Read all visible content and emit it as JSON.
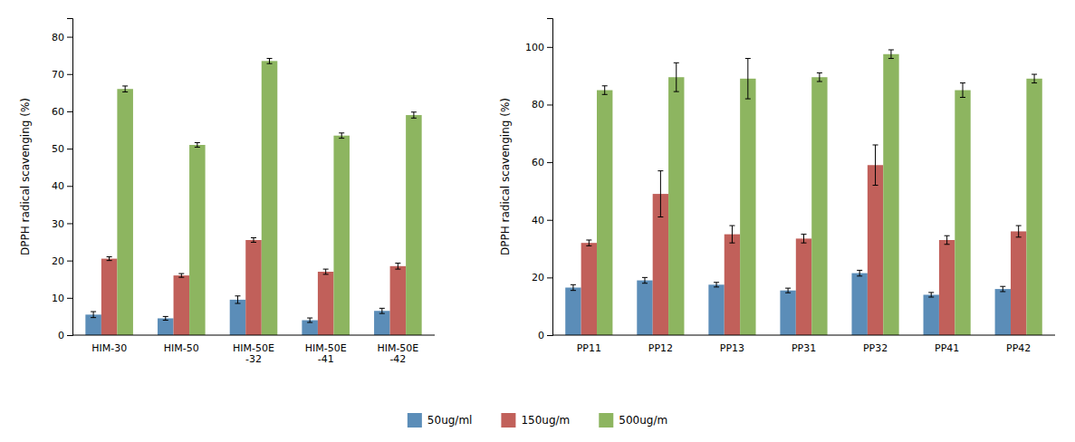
{
  "chart_data": [
    {
      "type": "bar",
      "categories": [
        "HIM-30",
        "HIM-50",
        "HIM-50E\n-32",
        "HIM-50E\n-41",
        "HIM-50E\n-42"
      ],
      "series": [
        {
          "name": "50ug/ml",
          "color": "#5B8DB8",
          "values": [
            5.5,
            4.5,
            9.5,
            4.0,
            6.5
          ],
          "errors": [
            0.8,
            0.5,
            1.0,
            0.6,
            0.7
          ]
        },
        {
          "name": "150ug/m",
          "color": "#C1605A",
          "values": [
            20.5,
            16.0,
            25.5,
            17.0,
            18.5
          ],
          "errors": [
            0.5,
            0.5,
            0.6,
            0.7,
            0.8
          ]
        },
        {
          "name": "500ug/m",
          "color": "#8DB560",
          "values": [
            66.0,
            51.0,
            73.5,
            53.5,
            59.0
          ],
          "errors": [
            0.8,
            0.6,
            0.7,
            0.7,
            0.8
          ]
        }
      ],
      "ylabel": "DPPH radical scavenging (%)",
      "ylim": [
        0,
        85
      ],
      "yticks": [
        0,
        10,
        20,
        30,
        40,
        50,
        60,
        70,
        80
      ],
      "grid": false,
      "legend": "bottom"
    },
    {
      "type": "bar",
      "categories": [
        "PP11",
        "PP12",
        "PP13",
        "PP31",
        "PP32",
        "PP41",
        "PP42"
      ],
      "series": [
        {
          "name": "50ug/ml",
          "color": "#5B8DB8",
          "values": [
            16.5,
            19.0,
            17.5,
            15.5,
            21.5,
            14.0,
            16.0
          ],
          "errors": [
            1.0,
            1.0,
            0.8,
            0.8,
            1.0,
            0.8,
            0.9
          ]
        },
        {
          "name": "150ug/m",
          "color": "#C1605A",
          "values": [
            32.0,
            49.0,
            35.0,
            33.5,
            59.0,
            33.0,
            36.0
          ],
          "errors": [
            1.0,
            8.0,
            3.0,
            1.5,
            7.0,
            1.5,
            2.0
          ]
        },
        {
          "name": "500ug/m",
          "color": "#8DB560",
          "values": [
            85.0,
            89.5,
            89.0,
            89.5,
            97.5,
            85.0,
            89.0
          ],
          "errors": [
            1.5,
            5.0,
            7.0,
            1.5,
            1.5,
            2.5,
            1.5
          ]
        }
      ],
      "ylabel": "DPPH radical scavenging (%)",
      "ylim": [
        0,
        110
      ],
      "yticks": [
        0,
        20,
        40,
        60,
        80,
        100
      ],
      "grid": false
    }
  ]
}
